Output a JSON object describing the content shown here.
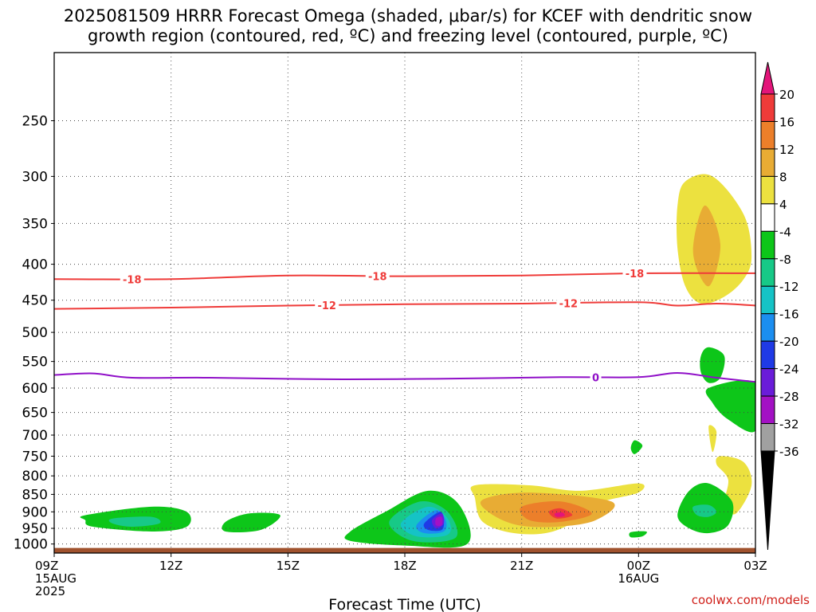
{
  "title": {
    "line1": "2025081509 HRRR Forecast Omega (shaded, μbar/s) for KCEF with dendritic snow",
    "line2": "growth region (contoured, red, ºC) and freezing level (contoured, purple, ºC)"
  },
  "credit": "coolwx.com/models",
  "chart_data": {
    "type": "heatmap",
    "title": "2025081509 HRRR Forecast Omega (shaded, μbar/s) for KCEF with dendritic snow growth region (contoured, red, ºC) and freezing level (contoured, purple, ºC)",
    "xlabel": "Forecast Time (UTC)",
    "ylabel": "",
    "x_range": [
      0,
      18
    ],
    "y_axis_scale": "log-pressure",
    "y_range_hPa": [
      1030,
      200
    ],
    "x_ticks": [
      {
        "hour": 0,
        "lines": [
          "09Z",
          "15AUG",
          "2025"
        ]
      },
      {
        "hour": 3,
        "lines": [
          "12Z"
        ]
      },
      {
        "hour": 6,
        "lines": [
          "15Z"
        ]
      },
      {
        "hour": 9,
        "lines": [
          "18Z"
        ]
      },
      {
        "hour": 12,
        "lines": [
          "21Z"
        ]
      },
      {
        "hour": 15,
        "lines": [
          "00Z",
          "16AUG"
        ]
      },
      {
        "hour": 18,
        "lines": [
          "03Z"
        ]
      }
    ],
    "y_ticks": [
      250,
      300,
      350,
      400,
      450,
      500,
      550,
      600,
      650,
      700,
      750,
      800,
      850,
      900,
      950,
      1000
    ],
    "grid": true,
    "colorbar": {
      "labels": [
        "20",
        "16",
        "12",
        "8",
        "4",
        "-4",
        "-8",
        "-12",
        "-16",
        "-20",
        "-24",
        "-28",
        "-32",
        "-36"
      ],
      "colors": [
        "#e3157a",
        "#ef3b39",
        "#ec7f2a",
        "#e8ac34",
        "#ece13f",
        "#ffffff",
        "#0dc619",
        "#17c987",
        "#15c3c6",
        "#1b8ef0",
        "#1f3ae6",
        "#6a1cd9",
        "#a311c4",
        "#a0a0a0",
        "#000000"
      ]
    },
    "contours": [
      {
        "label": "-18",
        "color": "#ef3b39",
        "points": [
          [
            0,
            420
          ],
          [
            3,
            420
          ],
          [
            6,
            415
          ],
          [
            9,
            416
          ],
          [
            12,
            415
          ],
          [
            15,
            412
          ],
          [
            18,
            412
          ]
        ],
        "label_hours": [
          2.0,
          8.3,
          14.9
        ]
      },
      {
        "label": "-12",
        "color": "#ef3b39",
        "points": [
          [
            0,
            463
          ],
          [
            3,
            461
          ],
          [
            6,
            458
          ],
          [
            9,
            456
          ],
          [
            12,
            455
          ],
          [
            15,
            453
          ],
          [
            16,
            458
          ],
          [
            17,
            455
          ],
          [
            18,
            458
          ]
        ],
        "label_hours": [
          7.0,
          13.2
        ]
      },
      {
        "label": "0",
        "color": "#9010c8",
        "points": [
          [
            0,
            575
          ],
          [
            1,
            572
          ],
          [
            2,
            580
          ],
          [
            4,
            580
          ],
          [
            7,
            583
          ],
          [
            10,
            582
          ],
          [
            13,
            579
          ],
          [
            15,
            579
          ],
          [
            16,
            571
          ],
          [
            17,
            580
          ],
          [
            18,
            588
          ]
        ],
        "label_hours": [
          13.9
        ]
      }
    ],
    "omega_regions": [
      {
        "level": 4,
        "points": [
          [
            16.2,
            305
          ],
          [
            16.9,
            300
          ],
          [
            17.7,
            340
          ],
          [
            17.9,
            390
          ],
          [
            17.7,
            420
          ],
          [
            17.2,
            445
          ],
          [
            16.6,
            455
          ],
          [
            16.2,
            430
          ],
          [
            16.0,
            380
          ],
          [
            16.0,
            330
          ]
        ]
      },
      {
        "level": 8,
        "points": [
          [
            16.7,
            330
          ],
          [
            17.1,
            375
          ],
          [
            16.8,
            430
          ],
          [
            16.4,
            385
          ]
        ]
      },
      {
        "level": -4,
        "points": [
          [
            16.8,
            525
          ],
          [
            17.2,
            540
          ],
          [
            17.1,
            580
          ],
          [
            16.8,
            590
          ],
          [
            16.6,
            570
          ],
          [
            16.6,
            540
          ]
        ]
      },
      {
        "level": -4,
        "points": [
          [
            16.8,
            600
          ],
          [
            18.0,
            590
          ],
          [
            18.0,
            690
          ],
          [
            17.3,
            665
          ],
          [
            16.9,
            630
          ]
        ]
      },
      {
        "level": 4,
        "points": [
          [
            16.8,
            680
          ],
          [
            17.0,
            692
          ],
          [
            16.9,
            740
          ]
        ]
      },
      {
        "level": -4,
        "points": [
          [
            14.9,
            712
          ],
          [
            15.1,
            725
          ],
          [
            14.9,
            745
          ],
          [
            14.8,
            730
          ]
        ]
      },
      {
        "level": 4,
        "points": [
          [
            17.1,
            750
          ],
          [
            17.7,
            765
          ],
          [
            17.9,
            825
          ],
          [
            17.5,
            905
          ],
          [
            17.2,
            880
          ],
          [
            17.3,
            810
          ],
          [
            17.0,
            770
          ]
        ]
      },
      {
        "level": -4,
        "points": [
          [
            16.3,
            840
          ],
          [
            16.8,
            820
          ],
          [
            17.4,
            870
          ],
          [
            17.3,
            940
          ],
          [
            16.8,
            965
          ],
          [
            16.3,
            950
          ],
          [
            16.0,
            910
          ]
        ]
      },
      {
        "level": -8,
        "points": [
          [
            16.4,
            885
          ],
          [
            16.8,
            880
          ],
          [
            17.0,
            900
          ],
          [
            16.8,
            915
          ],
          [
            16.5,
            910
          ]
        ]
      },
      {
        "level": -4,
        "points": [
          [
            14.8,
            962
          ],
          [
            15.2,
            960
          ],
          [
            15.1,
            975
          ],
          [
            14.8,
            978
          ]
        ]
      },
      {
        "level": -4,
        "points": [
          [
            0.8,
            910
          ],
          [
            2.5,
            885
          ],
          [
            3.4,
            900
          ],
          [
            3.4,
            945
          ],
          [
            2.5,
            960
          ],
          [
            1.0,
            945
          ],
          [
            0.8,
            925
          ]
        ]
      },
      {
        "level": -8,
        "points": [
          [
            1.5,
            920
          ],
          [
            2.5,
            915
          ],
          [
            2.7,
            935
          ],
          [
            2.0,
            945
          ],
          [
            1.5,
            935
          ]
        ]
      },
      {
        "level": -4,
        "points": [
          [
            4.4,
            930
          ],
          [
            5.0,
            905
          ],
          [
            5.8,
            910
          ],
          [
            5.3,
            955
          ],
          [
            4.4,
            960
          ]
        ]
      },
      {
        "level": -4,
        "points": [
          [
            7.6,
            960
          ],
          [
            8.5,
            900
          ],
          [
            9.6,
            840
          ],
          [
            10.4,
            880
          ],
          [
            10.6,
            1000
          ],
          [
            9.0,
            1005
          ],
          [
            7.6,
            990
          ]
        ]
      },
      {
        "level": -8,
        "points": [
          [
            8.6,
            930
          ],
          [
            9.4,
            870
          ],
          [
            10.1,
            900
          ],
          [
            10.3,
            980
          ],
          [
            9.2,
            990
          ]
        ]
      },
      {
        "level": -12,
        "points": [
          [
            8.9,
            935
          ],
          [
            9.6,
            885
          ],
          [
            10.1,
            920
          ],
          [
            10.1,
            970
          ],
          [
            9.3,
            975
          ]
        ]
      },
      {
        "level": -16,
        "points": [
          [
            9.3,
            940
          ],
          [
            9.8,
            895
          ],
          [
            10.05,
            925
          ],
          [
            10.0,
            960
          ],
          [
            9.5,
            965
          ]
        ]
      },
      {
        "level": -20,
        "points": [
          [
            9.5,
            935
          ],
          [
            9.9,
            900
          ],
          [
            10.0,
            925
          ],
          [
            9.95,
            955
          ],
          [
            9.6,
            955
          ]
        ]
      },
      {
        "level": -24,
        "points": [
          [
            9.7,
            925
          ],
          [
            9.95,
            905
          ],
          [
            10.0,
            935
          ],
          [
            9.8,
            950
          ]
        ]
      },
      {
        "level": -28,
        "points": [
          [
            9.8,
            920
          ],
          [
            9.95,
            915
          ],
          [
            9.95,
            940
          ],
          [
            9.8,
            940
          ]
        ]
      },
      {
        "level": 4,
        "points": [
          [
            10.8,
            825
          ],
          [
            12.2,
            825
          ],
          [
            13.5,
            840
          ],
          [
            15.0,
            820
          ],
          [
            15.0,
            845
          ],
          [
            14.1,
            870
          ],
          [
            13.8,
            900
          ],
          [
            12.8,
            960
          ],
          [
            11.8,
            965
          ],
          [
            11.0,
            930
          ],
          [
            10.8,
            860
          ]
        ]
      },
      {
        "level": 8,
        "points": [
          [
            11.0,
            865
          ],
          [
            12.2,
            845
          ],
          [
            14.3,
            870
          ],
          [
            13.9,
            925
          ],
          [
            12.9,
            945
          ],
          [
            11.9,
            940
          ],
          [
            11.2,
            905
          ]
        ]
      },
      {
        "level": 12,
        "points": [
          [
            12.0,
            885
          ],
          [
            13.0,
            870
          ],
          [
            13.8,
            905
          ],
          [
            13.0,
            930
          ],
          [
            12.2,
            925
          ]
        ]
      },
      {
        "level": 16,
        "points": [
          [
            12.7,
            900
          ],
          [
            13.0,
            890
          ],
          [
            13.3,
            910
          ],
          [
            12.9,
            920
          ]
        ]
      },
      {
        "level": 20,
        "points": [
          [
            12.85,
            905
          ],
          [
            13.05,
            902
          ],
          [
            13.1,
            912
          ],
          [
            12.9,
            915
          ]
        ]
      }
    ],
    "terrain": {
      "top_hPa": 1013,
      "color": "#a0522d"
    }
  }
}
